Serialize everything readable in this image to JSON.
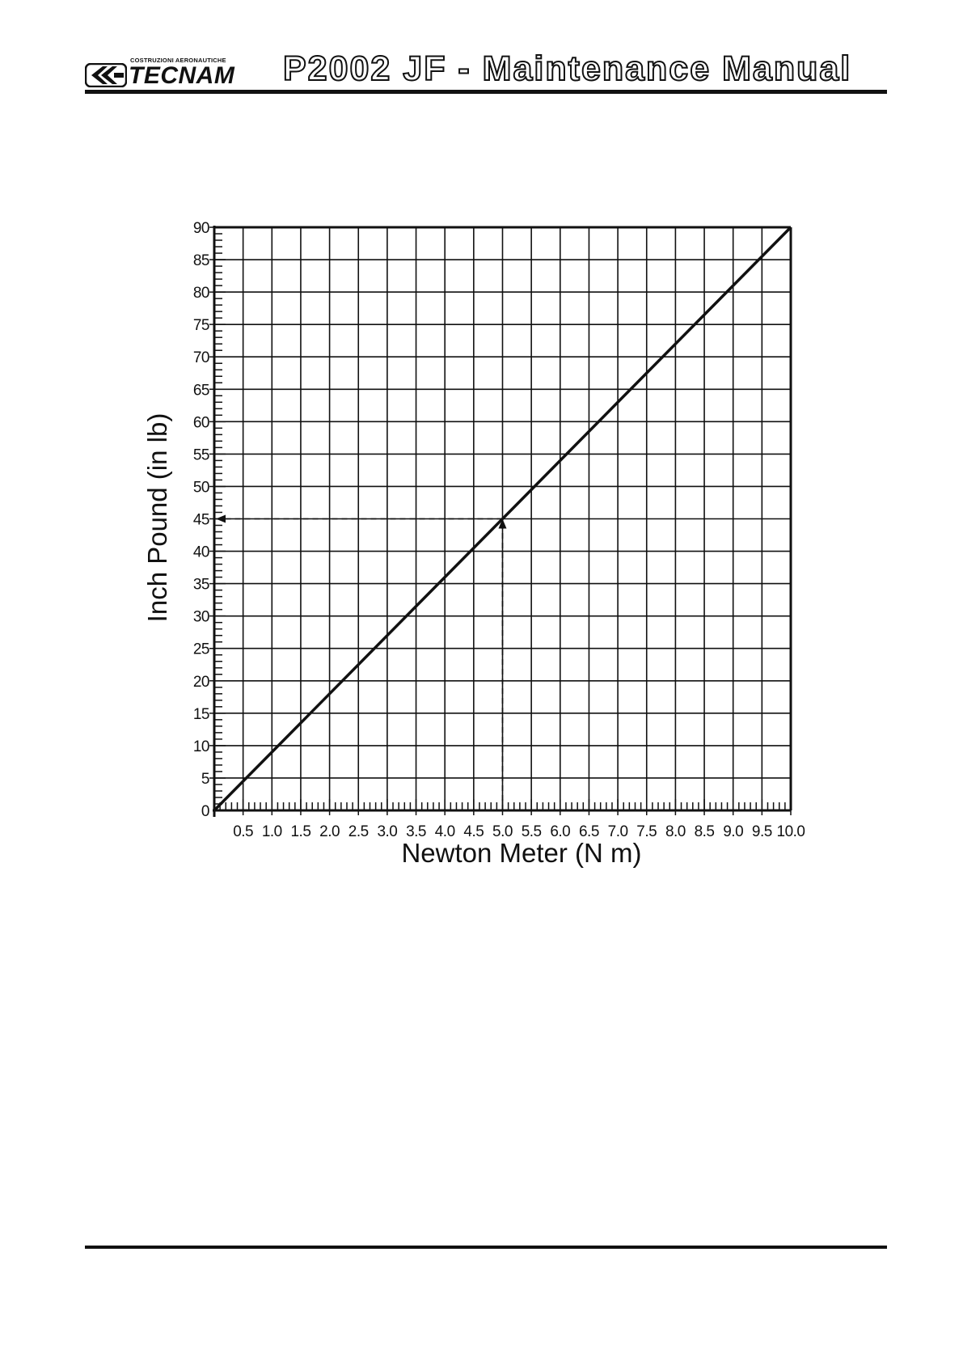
{
  "header": {
    "logo_sub": "COSTRUZIONI AERONAUTICHE",
    "logo_main": "TECNAM",
    "title": "P2002 JF - Maintenance Manual"
  },
  "chart_data": {
    "type": "line",
    "title": "",
    "xlabel": "Newton Meter (N m)",
    "ylabel": "Inch Pound (in lb)",
    "xlim": [
      0,
      10
    ],
    "ylim": [
      0,
      90
    ],
    "x_ticks": [
      "0.5",
      "1.0",
      "1.5",
      "2.0",
      "2.5",
      "3.0",
      "3.5",
      "4.0",
      "4.5",
      "5.0",
      "5.5",
      "6.0",
      "6.5",
      "7.0",
      "7.5",
      "8.0",
      "8.5",
      "9.0",
      "9.5",
      "10.0"
    ],
    "y_ticks": [
      "0",
      "5",
      "10",
      "15",
      "20",
      "25",
      "30",
      "35",
      "40",
      "45",
      "50",
      "55",
      "60",
      "65",
      "70",
      "75",
      "80",
      "85",
      "90"
    ],
    "grid": true,
    "series": [
      {
        "name": "",
        "x": [
          0,
          10
        ],
        "y": [
          0,
          90
        ]
      }
    ],
    "example_lookup": {
      "x": 5.0,
      "y": 45
    }
  }
}
